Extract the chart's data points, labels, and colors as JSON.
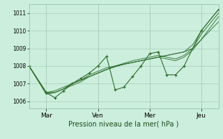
{
  "xlabel": "Pression niveau de la mer( hPa )",
  "background_color": "#cceedd",
  "grid_color": "#aaccbb",
  "line_color": "#2d6e2d",
  "yticks": [
    1006,
    1007,
    1008,
    1009,
    1010,
    1011
  ],
  "ylim": [
    1005.6,
    1011.5
  ],
  "xtick_labels": [
    "Mar",
    "Ven",
    "Mer",
    "Jeu"
  ],
  "xtick_positions": [
    12,
    48,
    84,
    120
  ],
  "xlim": [
    0,
    132
  ],
  "series": [
    {
      "x": [
        0,
        12,
        18,
        24,
        30,
        36,
        42,
        48,
        54,
        60,
        66,
        72,
        78,
        84,
        90,
        96,
        102,
        108,
        114,
        120,
        132
      ],
      "y": [
        1008.0,
        1006.5,
        1006.5,
        1006.7,
        1007.0,
        1007.2,
        1007.4,
        1007.6,
        1007.8,
        1008.0,
        1008.1,
        1008.2,
        1008.3,
        1008.4,
        1008.5,
        1008.6,
        1008.7,
        1008.8,
        1009.2,
        1010.0,
        1011.2
      ]
    },
    {
      "x": [
        0,
        12,
        18,
        24,
        30,
        36,
        42,
        48,
        54,
        60,
        66,
        72,
        78,
        84,
        90,
        96,
        102,
        108,
        114,
        120,
        132
      ],
      "y": [
        1008.0,
        1006.5,
        1006.6,
        1006.8,
        1007.0,
        1007.2,
        1007.5,
        1007.7,
        1007.9,
        1008.0,
        1008.15,
        1008.3,
        1008.4,
        1008.5,
        1008.6,
        1008.5,
        1008.4,
        1008.6,
        1009.0,
        1009.8,
        1011.0
      ]
    },
    {
      "x": [
        0,
        12,
        18,
        24,
        30,
        36,
        42,
        48,
        54,
        60,
        66,
        72,
        78,
        84,
        90,
        96,
        102,
        108,
        114,
        120,
        132
      ],
      "y": [
        1008.0,
        1006.4,
        1006.5,
        1006.7,
        1006.9,
        1007.1,
        1007.4,
        1007.6,
        1007.8,
        1007.95,
        1008.1,
        1008.2,
        1008.3,
        1008.4,
        1008.5,
        1008.6,
        1008.7,
        1008.8,
        1009.0,
        1009.5,
        1010.5
      ]
    },
    {
      "x": [
        0,
        12,
        18,
        24,
        30,
        36,
        42,
        48,
        54,
        60,
        66,
        72,
        78,
        84,
        90,
        96,
        102,
        108,
        114,
        120,
        132
      ],
      "y": [
        1008.0,
        1006.5,
        1006.5,
        1006.7,
        1007.0,
        1007.2,
        1007.4,
        1007.6,
        1007.8,
        1008.0,
        1008.1,
        1008.2,
        1008.3,
        1008.4,
        1008.5,
        1008.4,
        1008.3,
        1008.5,
        1008.9,
        1009.5,
        1010.8
      ]
    }
  ],
  "main_series": {
    "x": [
      0,
      12,
      18,
      24,
      30,
      36,
      42,
      48,
      54,
      60,
      66,
      72,
      78,
      84,
      90,
      96,
      102,
      108,
      120,
      132
    ],
    "y": [
      1008.0,
      1006.5,
      1006.2,
      1006.6,
      1007.0,
      1007.3,
      1007.6,
      1008.0,
      1008.55,
      1006.65,
      1006.8,
      1007.4,
      1008.0,
      1008.7,
      1008.8,
      1007.5,
      1007.5,
      1008.0,
      1010.0,
      1011.2
    ]
  }
}
